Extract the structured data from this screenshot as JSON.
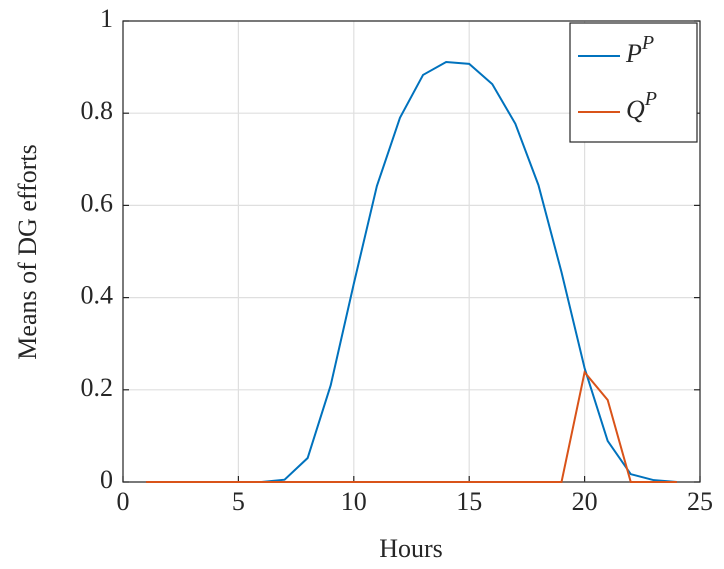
{
  "chart_data": {
    "type": "line",
    "xlabel": "Hours",
    "ylabel": "Means of DG efforts",
    "x": [
      1,
      2,
      3,
      4,
      5,
      6,
      7,
      8,
      9,
      10,
      11,
      12,
      13,
      14,
      15,
      16,
      17,
      18,
      19,
      20,
      21,
      22,
      23,
      24
    ],
    "series": [
      {
        "name": "P^P",
        "color": "#0072bd",
        "values": [
          0,
          0,
          0,
          0,
          0,
          0,
          0.005,
          0.052,
          0.21,
          0.43,
          0.642,
          0.79,
          0.883,
          0.911,
          0.907,
          0.863,
          0.777,
          0.644,
          0.455,
          0.247,
          0.089,
          0.017,
          0.004,
          0
        ]
      },
      {
        "name": "Q^P",
        "color": "#d95319",
        "values": [
          0,
          0,
          0,
          0,
          0,
          0,
          0,
          0,
          0,
          0,
          0,
          0,
          0,
          0,
          0,
          0,
          0,
          0,
          0,
          0.238,
          0.178,
          0,
          0,
          0
        ]
      }
    ],
    "xlim": [
      0,
      25
    ],
    "xticks": [
      0,
      5,
      10,
      15,
      20,
      25
    ],
    "ylim": [
      0,
      1
    ],
    "yticks": [
      0,
      0.2,
      0.4,
      0.6,
      0.8,
      1
    ],
    "grid": true,
    "legend": "upper right"
  }
}
